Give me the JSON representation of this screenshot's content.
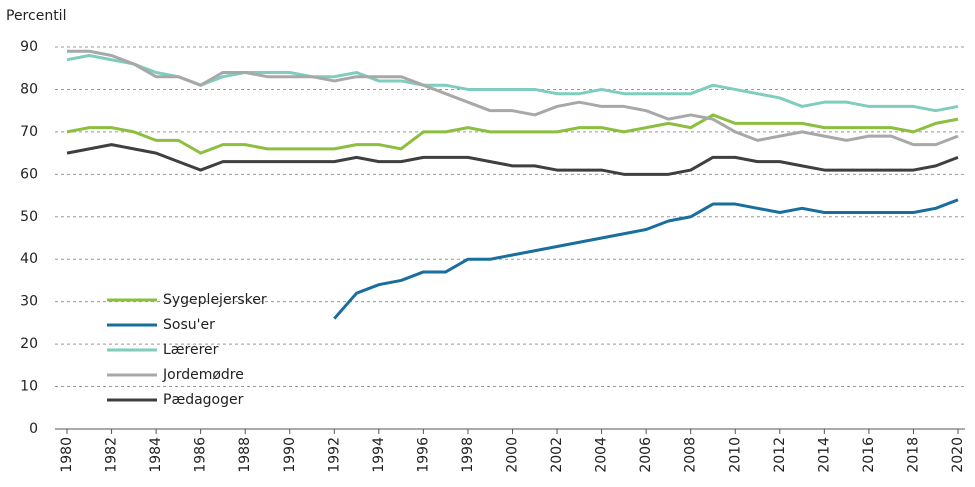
{
  "chart_data": {
    "type": "line",
    "y_label": "Percentil",
    "x": [
      1980,
      1981,
      1982,
      1983,
      1984,
      1985,
      1986,
      1987,
      1988,
      1989,
      1990,
      1991,
      1992,
      1993,
      1994,
      1995,
      1996,
      1997,
      1998,
      1999,
      2000,
      2001,
      2002,
      2003,
      2004,
      2005,
      2006,
      2007,
      2008,
      2009,
      2010,
      2011,
      2012,
      2013,
      2014,
      2015,
      2016,
      2017,
      2018,
      2019,
      2020
    ],
    "xlim": [
      1980,
      2020
    ],
    "xticks": [
      1980,
      1982,
      1984,
      1986,
      1988,
      1990,
      1992,
      1994,
      1996,
      1998,
      2000,
      2002,
      2004,
      2006,
      2008,
      2010,
      2012,
      2014,
      2016,
      2018,
      2020
    ],
    "ylim": [
      0,
      90
    ],
    "yticks": [
      0,
      10,
      20,
      30,
      40,
      50,
      60,
      70,
      80,
      90
    ],
    "grid": true,
    "legend": "lower-left",
    "series": [
      {
        "name": "Sygeplejersker",
        "color": "#8cbf3f",
        "values": [
          70,
          71,
          71,
          70,
          68,
          68,
          65,
          67,
          67,
          66,
          66,
          66,
          66,
          67,
          67,
          66,
          70,
          70,
          71,
          70,
          70,
          70,
          70,
          71,
          71,
          70,
          71,
          72,
          71,
          74,
          72,
          72,
          72,
          72,
          71,
          71,
          71,
          71,
          70,
          72,
          73
        ]
      },
      {
        "name": "Sosu'er",
        "color": "#1a6e9e",
        "values": [
          null,
          null,
          null,
          null,
          null,
          null,
          null,
          null,
          null,
          null,
          null,
          null,
          26,
          32,
          34,
          35,
          37,
          37,
          40,
          40,
          41,
          42,
          43,
          44,
          45,
          46,
          47,
          49,
          50,
          53,
          53,
          52,
          51,
          52,
          51,
          51,
          51,
          51,
          51,
          52,
          54
        ]
      },
      {
        "name": "Lærerer",
        "color": "#7fcdbe",
        "values": [
          87,
          88,
          87,
          86,
          84,
          83,
          81,
          83,
          84,
          84,
          84,
          83,
          83,
          84,
          82,
          82,
          81,
          81,
          80,
          80,
          80,
          80,
          79,
          79,
          80,
          79,
          79,
          79,
          79,
          81,
          80,
          79,
          78,
          76,
          77,
          77,
          76,
          76,
          76,
          75,
          76
        ]
      },
      {
        "name": "Jordemødre",
        "color": "#a8a8a8",
        "values": [
          89,
          89,
          88,
          86,
          83,
          83,
          81,
          84,
          84,
          83,
          83,
          83,
          82,
          83,
          83,
          83,
          81,
          79,
          77,
          75,
          75,
          74,
          76,
          77,
          76,
          76,
          75,
          73,
          74,
          73,
          70,
          68,
          69,
          70,
          69,
          68,
          69,
          69,
          67,
          67,
          69
        ]
      },
      {
        "name": "Pædagoger",
        "color": "#3f3f3f",
        "values": [
          65,
          66,
          67,
          66,
          65,
          63,
          61,
          63,
          63,
          63,
          63,
          63,
          63,
          64,
          63,
          63,
          64,
          64,
          64,
          63,
          62,
          62,
          61,
          61,
          61,
          60,
          60,
          60,
          61,
          64,
          64,
          63,
          63,
          62,
          61,
          61,
          61,
          61,
          61,
          62,
          64
        ]
      }
    ]
  }
}
